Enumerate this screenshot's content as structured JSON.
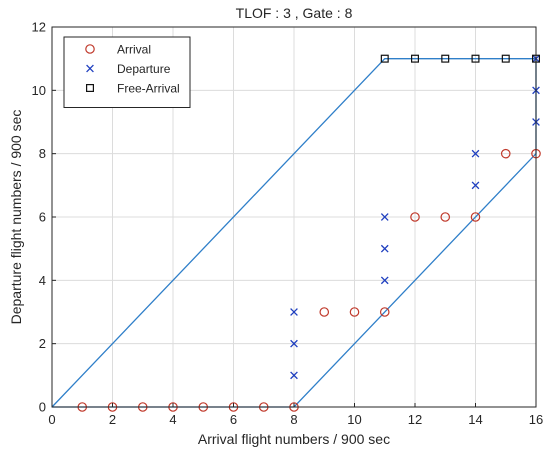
{
  "chart_data": {
    "type": "scatter",
    "title": "TLOF : 3 , Gate : 8",
    "xlabel": "Arrival flight numbers / 900 sec",
    "ylabel": "Departure flight numbers / 900 sec",
    "xlim": [
      0,
      16
    ],
    "ylim": [
      0,
      12
    ],
    "xticks": [
      0,
      2,
      4,
      6,
      8,
      10,
      12,
      14,
      16
    ],
    "yticks": [
      0,
      2,
      4,
      6,
      8,
      10,
      12
    ],
    "grid": true,
    "legend_position": "top-left",
    "series": [
      {
        "name": "Arrival",
        "marker": "circle",
        "color": "#c0392b",
        "points": [
          [
            1,
            0
          ],
          [
            2,
            0
          ],
          [
            3,
            0
          ],
          [
            4,
            0
          ],
          [
            5,
            0
          ],
          [
            6,
            0
          ],
          [
            7,
            0
          ],
          [
            8,
            0
          ],
          [
            9,
            3
          ],
          [
            10,
            3
          ],
          [
            11,
            3
          ],
          [
            12,
            6
          ],
          [
            13,
            6
          ],
          [
            14,
            6
          ],
          [
            15,
            8
          ],
          [
            16,
            8
          ]
        ]
      },
      {
        "name": "Departure",
        "marker": "x",
        "color": "#1f3fbf",
        "points": [
          [
            8,
            1
          ],
          [
            8,
            2
          ],
          [
            8,
            3
          ],
          [
            11,
            4
          ],
          [
            11,
            5
          ],
          [
            11,
            6
          ],
          [
            14,
            7
          ],
          [
            14,
            8
          ],
          [
            16,
            9
          ],
          [
            16,
            10
          ],
          [
            16,
            11
          ]
        ]
      },
      {
        "name": "Free-Arrival",
        "marker": "square",
        "color": "#111111",
        "points": [
          [
            11,
            11
          ],
          [
            12,
            11
          ],
          [
            13,
            11
          ],
          [
            14,
            11
          ],
          [
            15,
            11
          ],
          [
            16,
            11
          ]
        ]
      }
    ],
    "boundary": {
      "color": "#2f7fc9",
      "points": [
        [
          0,
          0
        ],
        [
          11,
          11
        ],
        [
          16,
          11
        ],
        [
          16,
          8
        ],
        [
          8,
          0
        ],
        [
          0,
          0
        ]
      ]
    }
  }
}
